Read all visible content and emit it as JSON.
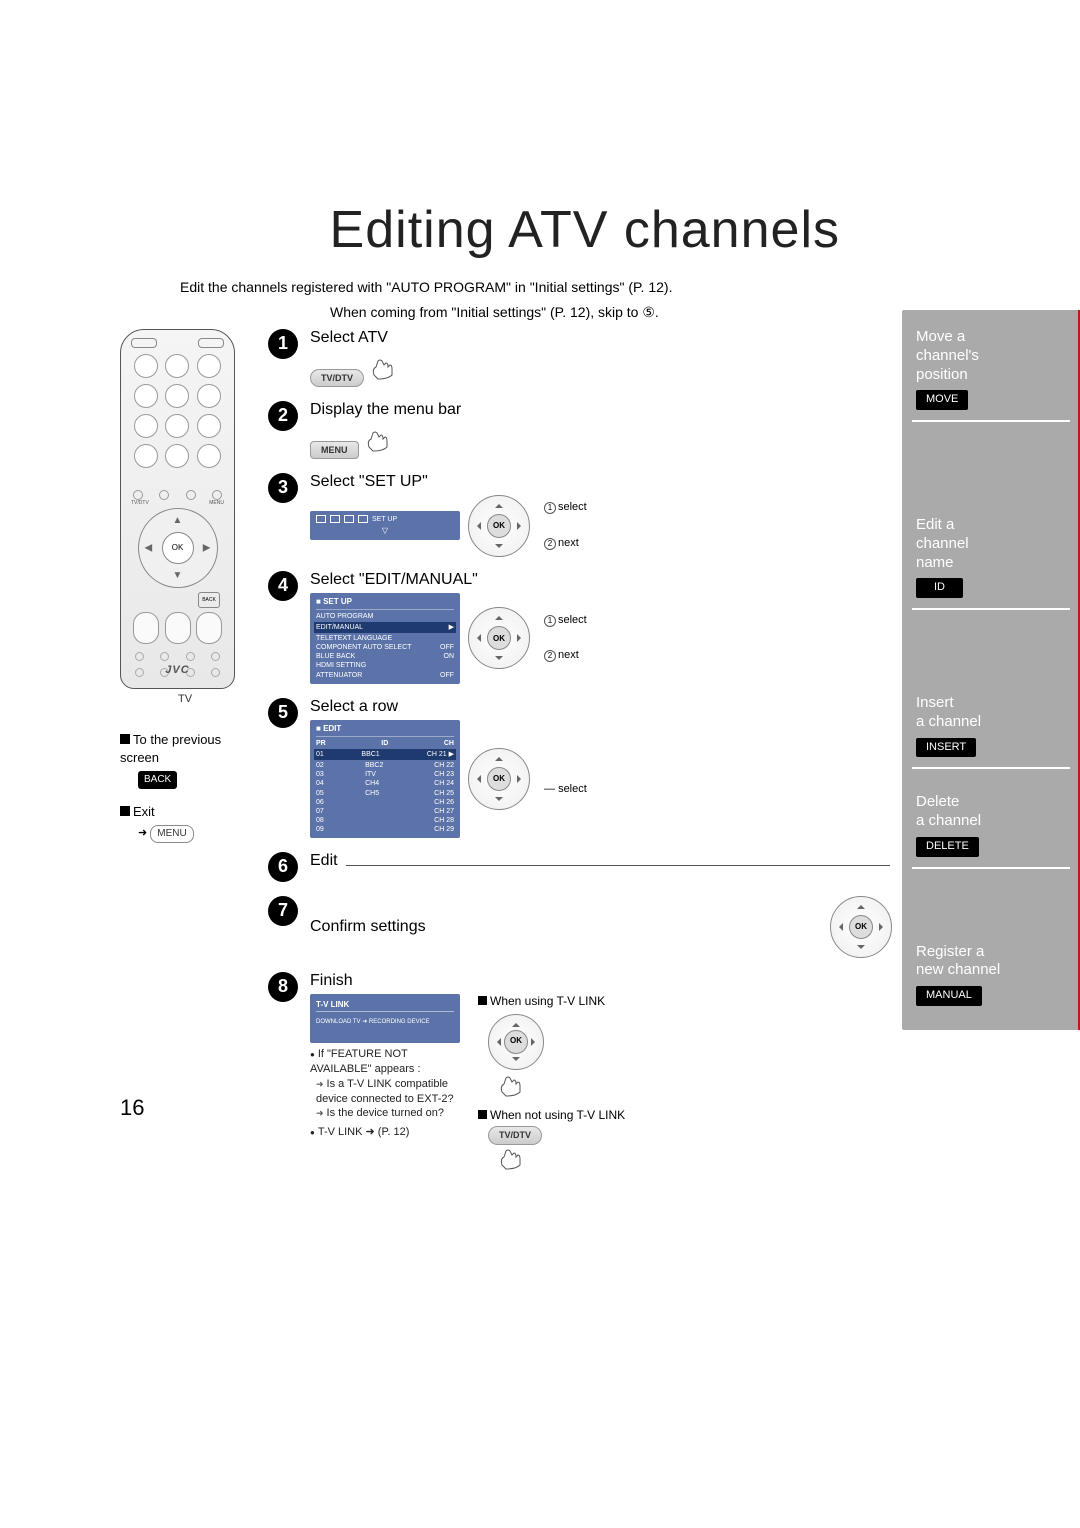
{
  "title": "Editing ATV channels",
  "intro1": "Edit the channels registered with \"AUTO PROGRAM\" in \"Initial settings\"  (P. 12).",
  "intro2": "When coming from \"Initial settings\" (P. 12), skip to ⑤.",
  "remote": {
    "brand": "JVC",
    "label": "TV",
    "tvdtv": "TV/DTV",
    "menu": "MENU",
    "ok": "OK",
    "back": "BACK"
  },
  "side_notes": {
    "prev_title": "To the previous screen",
    "back_btn": "BACK",
    "exit_title": "Exit",
    "menu_btn": "MENU"
  },
  "steps": {
    "s1": {
      "title": "Select ATV",
      "btn": "TV/DTV"
    },
    "s2": {
      "title": "Display the menu bar",
      "btn": "MENU"
    },
    "s3": {
      "title": "Select \"SET UP\"",
      "bluebox_label": "SET UP",
      "d1": "select",
      "d2": "next"
    },
    "s4": {
      "title": "Select \"EDIT/MANUAL\"",
      "menu_hdr": "SET UP",
      "rows": [
        [
          "AUTO PROGRAM",
          ""
        ],
        [
          "EDIT/MANUAL",
          "▶"
        ],
        [
          "TELETEXT LANGUAGE",
          ""
        ],
        [
          "COMPONENT AUTO SELECT",
          "OFF"
        ],
        [
          "BLUE BACK",
          "ON"
        ],
        [
          "HDMI SETTING",
          ""
        ],
        [
          "ATTENUATOR",
          "OFF"
        ]
      ],
      "d1": "select",
      "d2": "next"
    },
    "s5": {
      "title": "Select a row",
      "menu_hdr": "EDIT",
      "cols": [
        "PR",
        "ID",
        "CH"
      ],
      "rows": [
        [
          "01",
          "BBC1",
          "CH  21"
        ],
        [
          "02",
          "BBC2",
          "CH  22"
        ],
        [
          "03",
          "ITV",
          "CH  23"
        ],
        [
          "04",
          "CH4",
          "CH  24"
        ],
        [
          "05",
          "CH5",
          "CH  25"
        ],
        [
          "06",
          "",
          "CH  26"
        ],
        [
          "07",
          "",
          "CH  27"
        ],
        [
          "08",
          "",
          "CH  28"
        ],
        [
          "09",
          "",
          "CH  29"
        ]
      ],
      "d1": "select"
    },
    "s6": {
      "title": "Edit"
    },
    "s7": {
      "title": "Confirm settings"
    },
    "s8": {
      "title": "Finish",
      "tvlink_hdr": "T-V LINK",
      "tvlink_body": "DOWNLOAD TV ➜ RECORDING DEVICE",
      "note1": "If \"FEATURE NOT AVAILABLE\" appears :",
      "note1a": "Is a T-V LINK compatible device connected to EXT-2?",
      "note1b": "Is the device turned on?",
      "note2": "T-V LINK ➜ (P. 12)",
      "right1": "When using T-V LINK",
      "right2": "When not using T-V LINK",
      "btn": "TV/DTV"
    }
  },
  "sidebar": {
    "s1": {
      "t1": "Move a",
      "t2": "channel's",
      "t3": "position",
      "tag": "MOVE"
    },
    "s2": {
      "t1": "Edit a",
      "t2": "channel",
      "t3": "name",
      "tag": "ID"
    },
    "s3": {
      "t1": "Insert",
      "t2": "a channel",
      "tag": "INSERT"
    },
    "s4": {
      "t1": "Delete",
      "t2": "a channel",
      "tag": "DELETE"
    },
    "s5": {
      "t1": "Register a",
      "t2": "new channel",
      "tag": "MANUAL"
    }
  },
  "page_number": "16",
  "colors": {
    "bullet": "#000000",
    "sidebar_bg": "#aaaaaa",
    "red": "#c01818",
    "blue": "#5b73a8"
  }
}
